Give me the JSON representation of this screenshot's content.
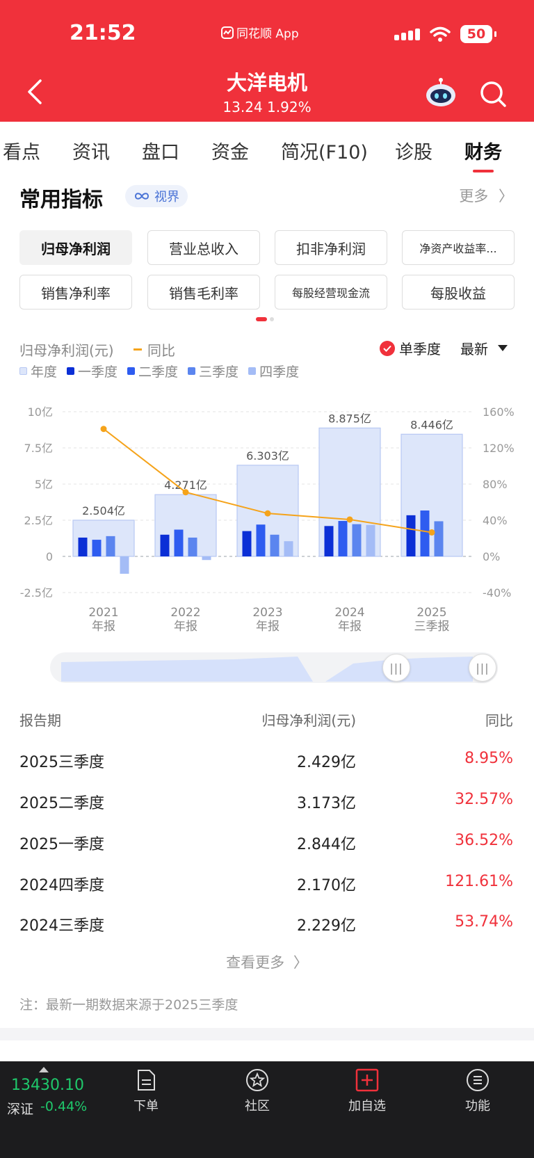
{
  "status_bar": {
    "time": "21:52",
    "app": "同花顺 App",
    "battery": "50"
  },
  "header": {
    "title": "大洋电机",
    "price": "13.24",
    "change": "1.92%"
  },
  "tabs": [
    "看点",
    "资讯",
    "盘口",
    "资金",
    "简况(F10)",
    "诊股",
    "财务"
  ],
  "active_tab": "财务",
  "section": {
    "title": "常用指标",
    "chip": "视界",
    "more": "更多"
  },
  "metrics": [
    "归母净利润",
    "营业总收入",
    "扣非净利润",
    "净资产收益率...",
    "销售净利率",
    "销售毛利率",
    "每股经营现金流",
    "每股收益"
  ],
  "chart_meta": {
    "label": "归母净利润(元)",
    "yoy_label": "同比",
    "single_quarter": "单季度",
    "latest": "最新",
    "legend": [
      "年度",
      "一季度",
      "二季度",
      "三季度",
      "四季度"
    ]
  },
  "colors": {
    "annual": "#dde6fa",
    "q1": "#0b2fd6",
    "q2": "#2e5cf0",
    "q3": "#5b85ef",
    "q4": "#a4bcf6",
    "yoy_line": "#f5a31a",
    "accent": "#f0313b"
  },
  "chart_data": {
    "type": "bar",
    "categories": [
      "2021\n年报",
      "2022\n年报",
      "2023\n年报",
      "2024\n年报",
      "2025\n三季报"
    ],
    "annual_labels": [
      "2.504亿",
      "4.271亿",
      "6.303亿",
      "8.875亿",
      "8.446亿"
    ],
    "series": [
      {
        "name": "年度",
        "values": [
          2.504,
          4.271,
          6.303,
          8.875,
          8.446
        ]
      },
      {
        "name": "一季度",
        "values": [
          1.3,
          1.5,
          1.75,
          2.1,
          2.844
        ]
      },
      {
        "name": "二季度",
        "values": [
          1.15,
          1.85,
          2.2,
          2.45,
          3.173
        ]
      },
      {
        "name": "三季度",
        "values": [
          1.4,
          1.3,
          1.5,
          2.229,
          2.429
        ]
      },
      {
        "name": "四季度",
        "values": [
          -1.2,
          -0.25,
          1.05,
          2.17,
          null
        ]
      },
      {
        "name": "同比",
        "values": [
          141,
          71,
          47.6,
          40.8,
          26.5
        ]
      }
    ],
    "y_left": {
      "ticks": [
        "10亿",
        "7.5亿",
        "5亿",
        "2.5亿",
        "0",
        "-2.5亿"
      ],
      "ylim": [
        -2.5,
        10
      ]
    },
    "y_right": {
      "ticks": [
        "160%",
        "120%",
        "80%",
        "40%",
        "0%",
        "-40%"
      ],
      "ylim": [
        -40,
        160
      ]
    },
    "grid": true
  },
  "table": {
    "headers": [
      "报告期",
      "归母净利润(元)",
      "同比"
    ],
    "rows": [
      {
        "period": "2025三季度",
        "value": "2.429亿",
        "yoy": "8.95%"
      },
      {
        "period": "2025二季度",
        "value": "3.173亿",
        "yoy": "32.57%"
      },
      {
        "period": "2025一季度",
        "value": "2.844亿",
        "yoy": "36.52%"
      },
      {
        "period": "2024四季度",
        "value": "2.170亿",
        "yoy": "121.61%"
      },
      {
        "period": "2024三季度",
        "value": "2.229亿",
        "yoy": "53.74%"
      }
    ],
    "see_more": "查看更多",
    "note": "注：最新一期数据来源于2025三季度"
  },
  "bottom_bar": {
    "index_value": "13430.10",
    "index_name": "深证",
    "index_change": "-0.44%",
    "nav": [
      "下单",
      "社区",
      "加自选",
      "功能"
    ]
  }
}
